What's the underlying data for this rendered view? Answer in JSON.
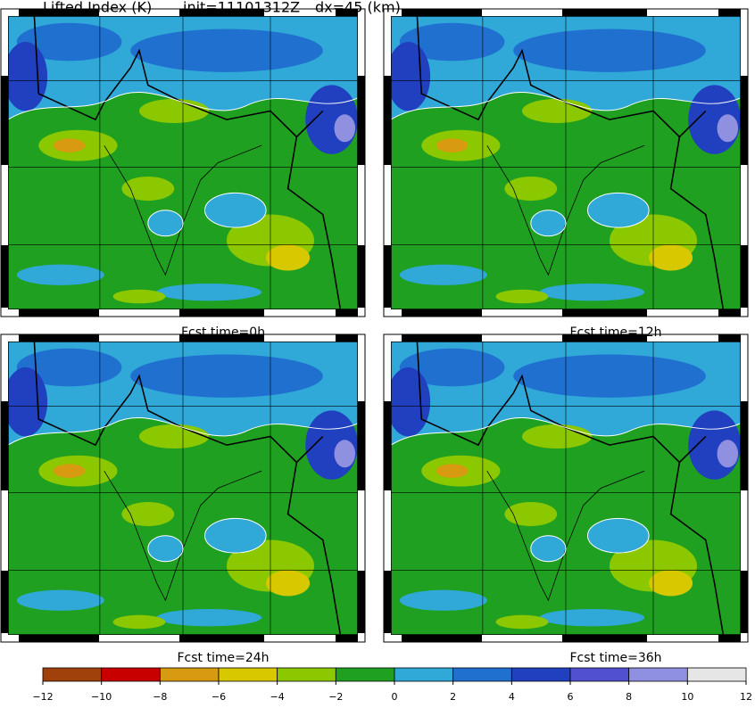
{
  "header": {
    "title": "Lifted Index (K)",
    "init": "init=11101312Z",
    "dx": "dx=45 (km)"
  },
  "panels": [
    {
      "title": "Fcst time=0h"
    },
    {
      "title": "Fcst time=12h"
    },
    {
      "title": "Fcst time=24h"
    },
    {
      "title": "Fcst time=36h"
    }
  ],
  "colorbar": {
    "ticks": [
      {
        "value": -12,
        "label": "−12"
      },
      {
        "value": -10,
        "label": "−10"
      },
      {
        "value": -8,
        "label": "−8"
      },
      {
        "value": -6,
        "label": "−6"
      },
      {
        "value": -4,
        "label": "−4"
      },
      {
        "value": -2,
        "label": "−2"
      },
      0,
      2,
      4,
      6,
      8,
      10,
      12
    ],
    "colors": [
      "#a0400a",
      "#c80000",
      "#d89a10",
      "#d8c800",
      "#8cc800",
      "#20a020",
      "#30a8d8",
      "#2070d0",
      "#2040c0",
      "#5050d0",
      "#9090e0",
      "#e6e6e6"
    ]
  }
}
